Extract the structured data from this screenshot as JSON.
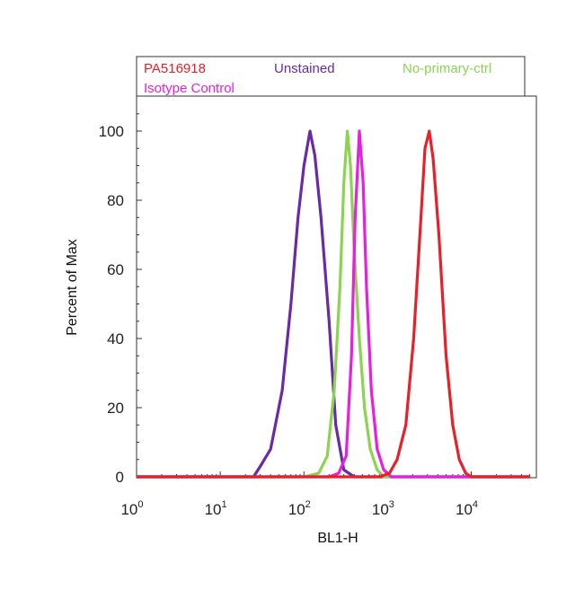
{
  "chart_data": {
    "type": "line",
    "xlabel": "BL1-H",
    "ylabel": "Percent of Max",
    "x_scale": "log",
    "xlim": [
      1,
      60000
    ],
    "ylim": [
      0,
      110
    ],
    "y_ticks": [
      0,
      20,
      40,
      60,
      80,
      100
    ],
    "x_ticks": [
      {
        "base": "10",
        "exp": "0",
        "value": 1
      },
      {
        "base": "10",
        "exp": "1",
        "value": 10
      },
      {
        "base": "10",
        "exp": "2",
        "value": 100
      },
      {
        "base": "10",
        "exp": "3",
        "value": 1000
      },
      {
        "base": "10",
        "exp": "4",
        "value": 10000
      }
    ],
    "legend": {
      "placement": "top",
      "entries": [
        {
          "label": "PA516918",
          "color": "#e8202a"
        },
        {
          "label": "Unstained",
          "color": "#6a2aa6"
        },
        {
          "label": "No-primary-ctrl",
          "color": "#8cd450"
        },
        {
          "label": "Isotype Control",
          "color": "#e81ee0"
        }
      ]
    },
    "series": [
      {
        "name": "Unstained",
        "color": "#6a2aa6",
        "points": [
          [
            1,
            0
          ],
          [
            25,
            0
          ],
          [
            30,
            3
          ],
          [
            40,
            8
          ],
          [
            55,
            25
          ],
          [
            70,
            50
          ],
          [
            85,
            75
          ],
          [
            100,
            90
          ],
          [
            118,
            100
          ],
          [
            135,
            93
          ],
          [
            160,
            75
          ],
          [
            200,
            45
          ],
          [
            240,
            15
          ],
          [
            300,
            2
          ],
          [
            400,
            0
          ],
          [
            600,
            0
          ],
          [
            1000,
            0
          ],
          [
            3000,
            0
          ],
          [
            10000,
            0
          ],
          [
            50000,
            0
          ]
        ]
      },
      {
        "name": "No-primary-ctrl",
        "color": "#8cd450",
        "points": [
          [
            1,
            0
          ],
          [
            100,
            0
          ],
          [
            150,
            1
          ],
          [
            190,
            6
          ],
          [
            230,
            25
          ],
          [
            270,
            55
          ],
          [
            300,
            85
          ],
          [
            330,
            100
          ],
          [
            360,
            90
          ],
          [
            400,
            65
          ],
          [
            460,
            40
          ],
          [
            530,
            20
          ],
          [
            620,
            8
          ],
          [
            750,
            2
          ],
          [
            900,
            0
          ],
          [
            1500,
            0
          ],
          [
            3000,
            0
          ],
          [
            10000,
            0
          ],
          [
            50000,
            0
          ]
        ]
      },
      {
        "name": "Isotype Control",
        "color": "#e81ee0",
        "points": [
          [
            1,
            0
          ],
          [
            200,
            0
          ],
          [
            260,
            1
          ],
          [
            320,
            6
          ],
          [
            370,
            35
          ],
          [
            410,
            75
          ],
          [
            460,
            100
          ],
          [
            510,
            85
          ],
          [
            560,
            55
          ],
          [
            640,
            25
          ],
          [
            750,
            8
          ],
          [
            900,
            2
          ],
          [
            1100,
            0
          ],
          [
            3000,
            0
          ],
          [
            10000,
            0
          ],
          [
            50000,
            0
          ]
        ]
      },
      {
        "name": "PA516918",
        "color": "#e8202a",
        "points": [
          [
            1,
            0
          ],
          [
            800,
            0
          ],
          [
            1050,
            1
          ],
          [
            1300,
            5
          ],
          [
            1650,
            15
          ],
          [
            2050,
            40
          ],
          [
            2500,
            75
          ],
          [
            2800,
            95
          ],
          [
            3150,
            100
          ],
          [
            3500,
            92
          ],
          [
            4100,
            70
          ],
          [
            5000,
            35
          ],
          [
            6000,
            15
          ],
          [
            7200,
            5
          ],
          [
            8600,
            1
          ],
          [
            10000,
            0
          ],
          [
            20000,
            0
          ],
          [
            50000,
            0
          ]
        ]
      }
    ]
  }
}
